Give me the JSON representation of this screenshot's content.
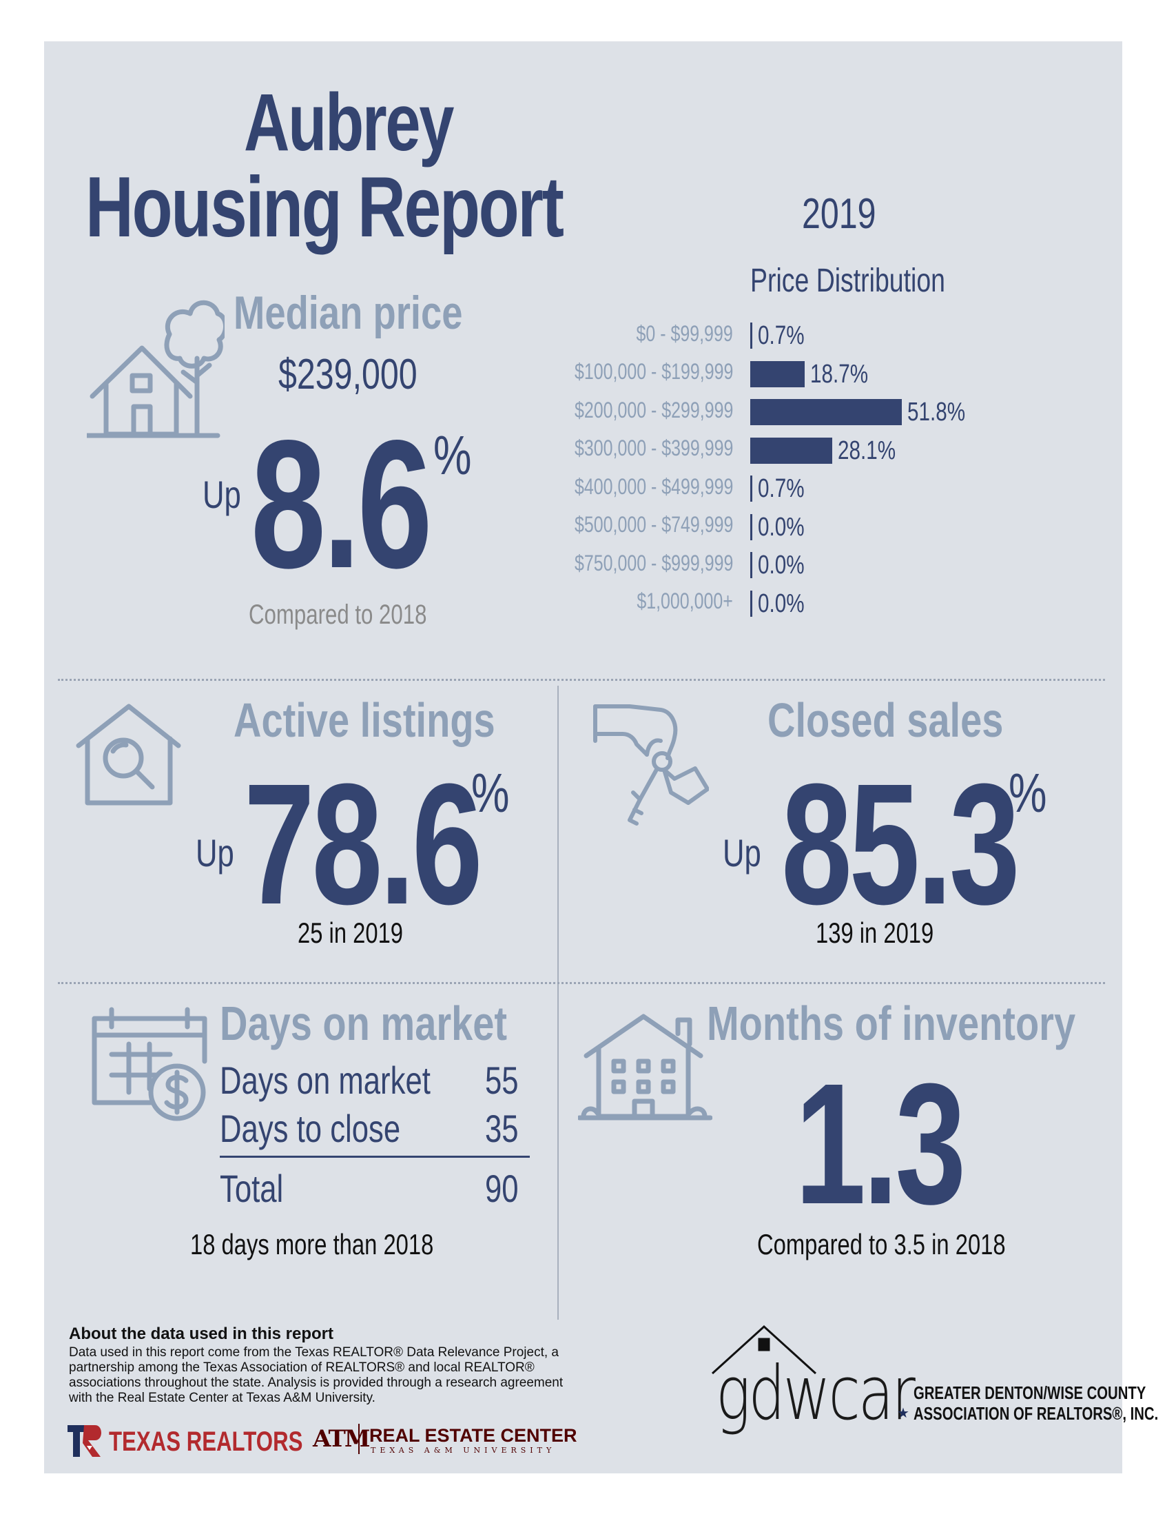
{
  "header": {
    "city": "Aubrey",
    "report_title": "Housing Report",
    "year": "2019"
  },
  "median_price": {
    "label": "Median price",
    "value": "$239,000",
    "direction": "Up",
    "change": "8.6",
    "unit": "%",
    "comparison": "Compared to 2018"
  },
  "price_distribution": {
    "title": "Price Distribution",
    "rows": [
      {
        "range": "$0 - $99,999",
        "pct": "0.7%"
      },
      {
        "range": "$100,000 - $199,999",
        "pct": "18.7%"
      },
      {
        "range": "$200,000 - $299,999",
        "pct": "51.8%"
      },
      {
        "range": "$300,000 - $399,999",
        "pct": "28.1%"
      },
      {
        "range": "$400,000 - $499,999",
        "pct": "0.7%"
      },
      {
        "range": "$500,000 - $749,999",
        "pct": "0.0%"
      },
      {
        "range": "$750,000 - $999,999",
        "pct": "0.0%"
      },
      {
        "range": "$1,000,000+",
        "pct": "0.0%"
      }
    ]
  },
  "chart_data": {
    "type": "bar",
    "title": "Price Distribution",
    "orientation": "horizontal",
    "categories": [
      "$0 - $99,999",
      "$100,000 - $199,999",
      "$200,000 - $299,999",
      "$300,000 - $399,999",
      "$400,000 - $499,999",
      "$500,000 - $749,999",
      "$750,000 - $999,999",
      "$1,000,000+"
    ],
    "values": [
      0.7,
      18.7,
      51.8,
      28.1,
      0.7,
      0.0,
      0.0,
      0.0
    ],
    "grid": false,
    "color": "#344470"
  },
  "active_listings": {
    "label": "Active listings",
    "direction": "Up",
    "change": "78.6",
    "unit": "%",
    "note": "25 in 2019"
  },
  "closed_sales": {
    "label": "Closed sales",
    "direction": "Up",
    "change": "85.3",
    "unit": "%",
    "note": "139 in 2019"
  },
  "days_on_market": {
    "label": "Days on market",
    "rows": [
      {
        "label": "Days on market",
        "value": "55"
      },
      {
        "label": "Days to close",
        "value": "35"
      }
    ],
    "total_label": "Total",
    "total_value": "90",
    "note": "18 days more than 2018"
  },
  "months_inventory": {
    "label": "Months of inventory",
    "value": "1.3",
    "note": "Compared to 3.5 in 2018"
  },
  "footer": {
    "about_title": "About the data used in this report",
    "about_lines": [
      "Data used in this report come from the Texas REALTOR® Data Relevance Project, a",
      "partnership among the Texas Association of REALTORS® and local REALTOR®",
      "associations throughout the state. Analysis is provided through a research agreement",
      "with the Real Estate Center at Texas A&M University."
    ],
    "texas_realtors": "TEXAS REALTORS",
    "rec_title": "REAL ESTATE CENTER",
    "rec_sub": "TEXAS A&M UNIVERSITY",
    "tam_mark": "ATM",
    "gdwcar_logo": "gdwcar",
    "gdwcar_line1": "GREATER DENTON/WISE COUNTY",
    "gdwcar_line2": "ASSOCIATION OF REALTORS®, INC."
  },
  "colors": {
    "navy": "#344470",
    "slate": "#8ea0b7",
    "panel": "#dde1e7",
    "texas_red": "#b22a2e",
    "maroon": "#500000"
  }
}
